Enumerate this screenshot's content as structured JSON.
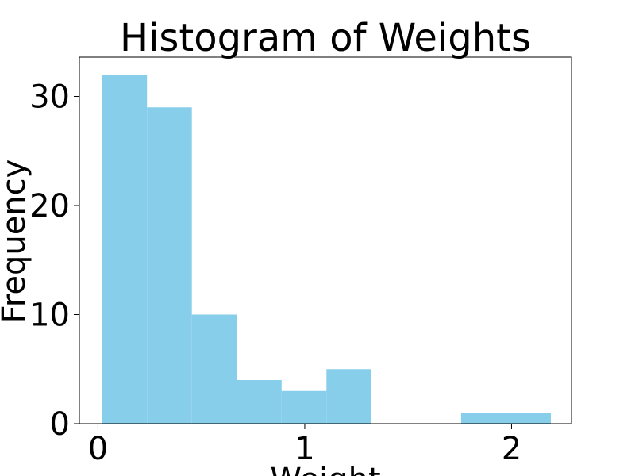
{
  "chart_data": {
    "type": "bar",
    "title": "Histogram of Weights",
    "xlabel": "Weight",
    "ylabel": "Frequency",
    "bar_color": "#87CEEB",
    "bins": [
      {
        "x0": 0.02,
        "x1": 0.237,
        "count": 32
      },
      {
        "x0": 0.237,
        "x1": 0.454,
        "count": 29
      },
      {
        "x0": 0.454,
        "x1": 0.671,
        "count": 10
      },
      {
        "x0": 0.671,
        "x1": 0.888,
        "count": 4
      },
      {
        "x0": 0.888,
        "x1": 1.105,
        "count": 3
      },
      {
        "x0": 1.105,
        "x1": 1.322,
        "count": 5
      },
      {
        "x0": 1.322,
        "x1": 1.539,
        "count": 0
      },
      {
        "x0": 1.539,
        "x1": 1.756,
        "count": 0
      },
      {
        "x0": 1.756,
        "x1": 1.973,
        "count": 1
      },
      {
        "x0": 1.973,
        "x1": 2.19,
        "count": 1
      }
    ],
    "xlim": [
      -0.09,
      2.29
    ],
    "ylim": [
      0,
      33.6
    ],
    "xticks": [
      0,
      1,
      2
    ],
    "yticks": [
      0,
      10,
      20,
      30
    ],
    "grid": false
  }
}
